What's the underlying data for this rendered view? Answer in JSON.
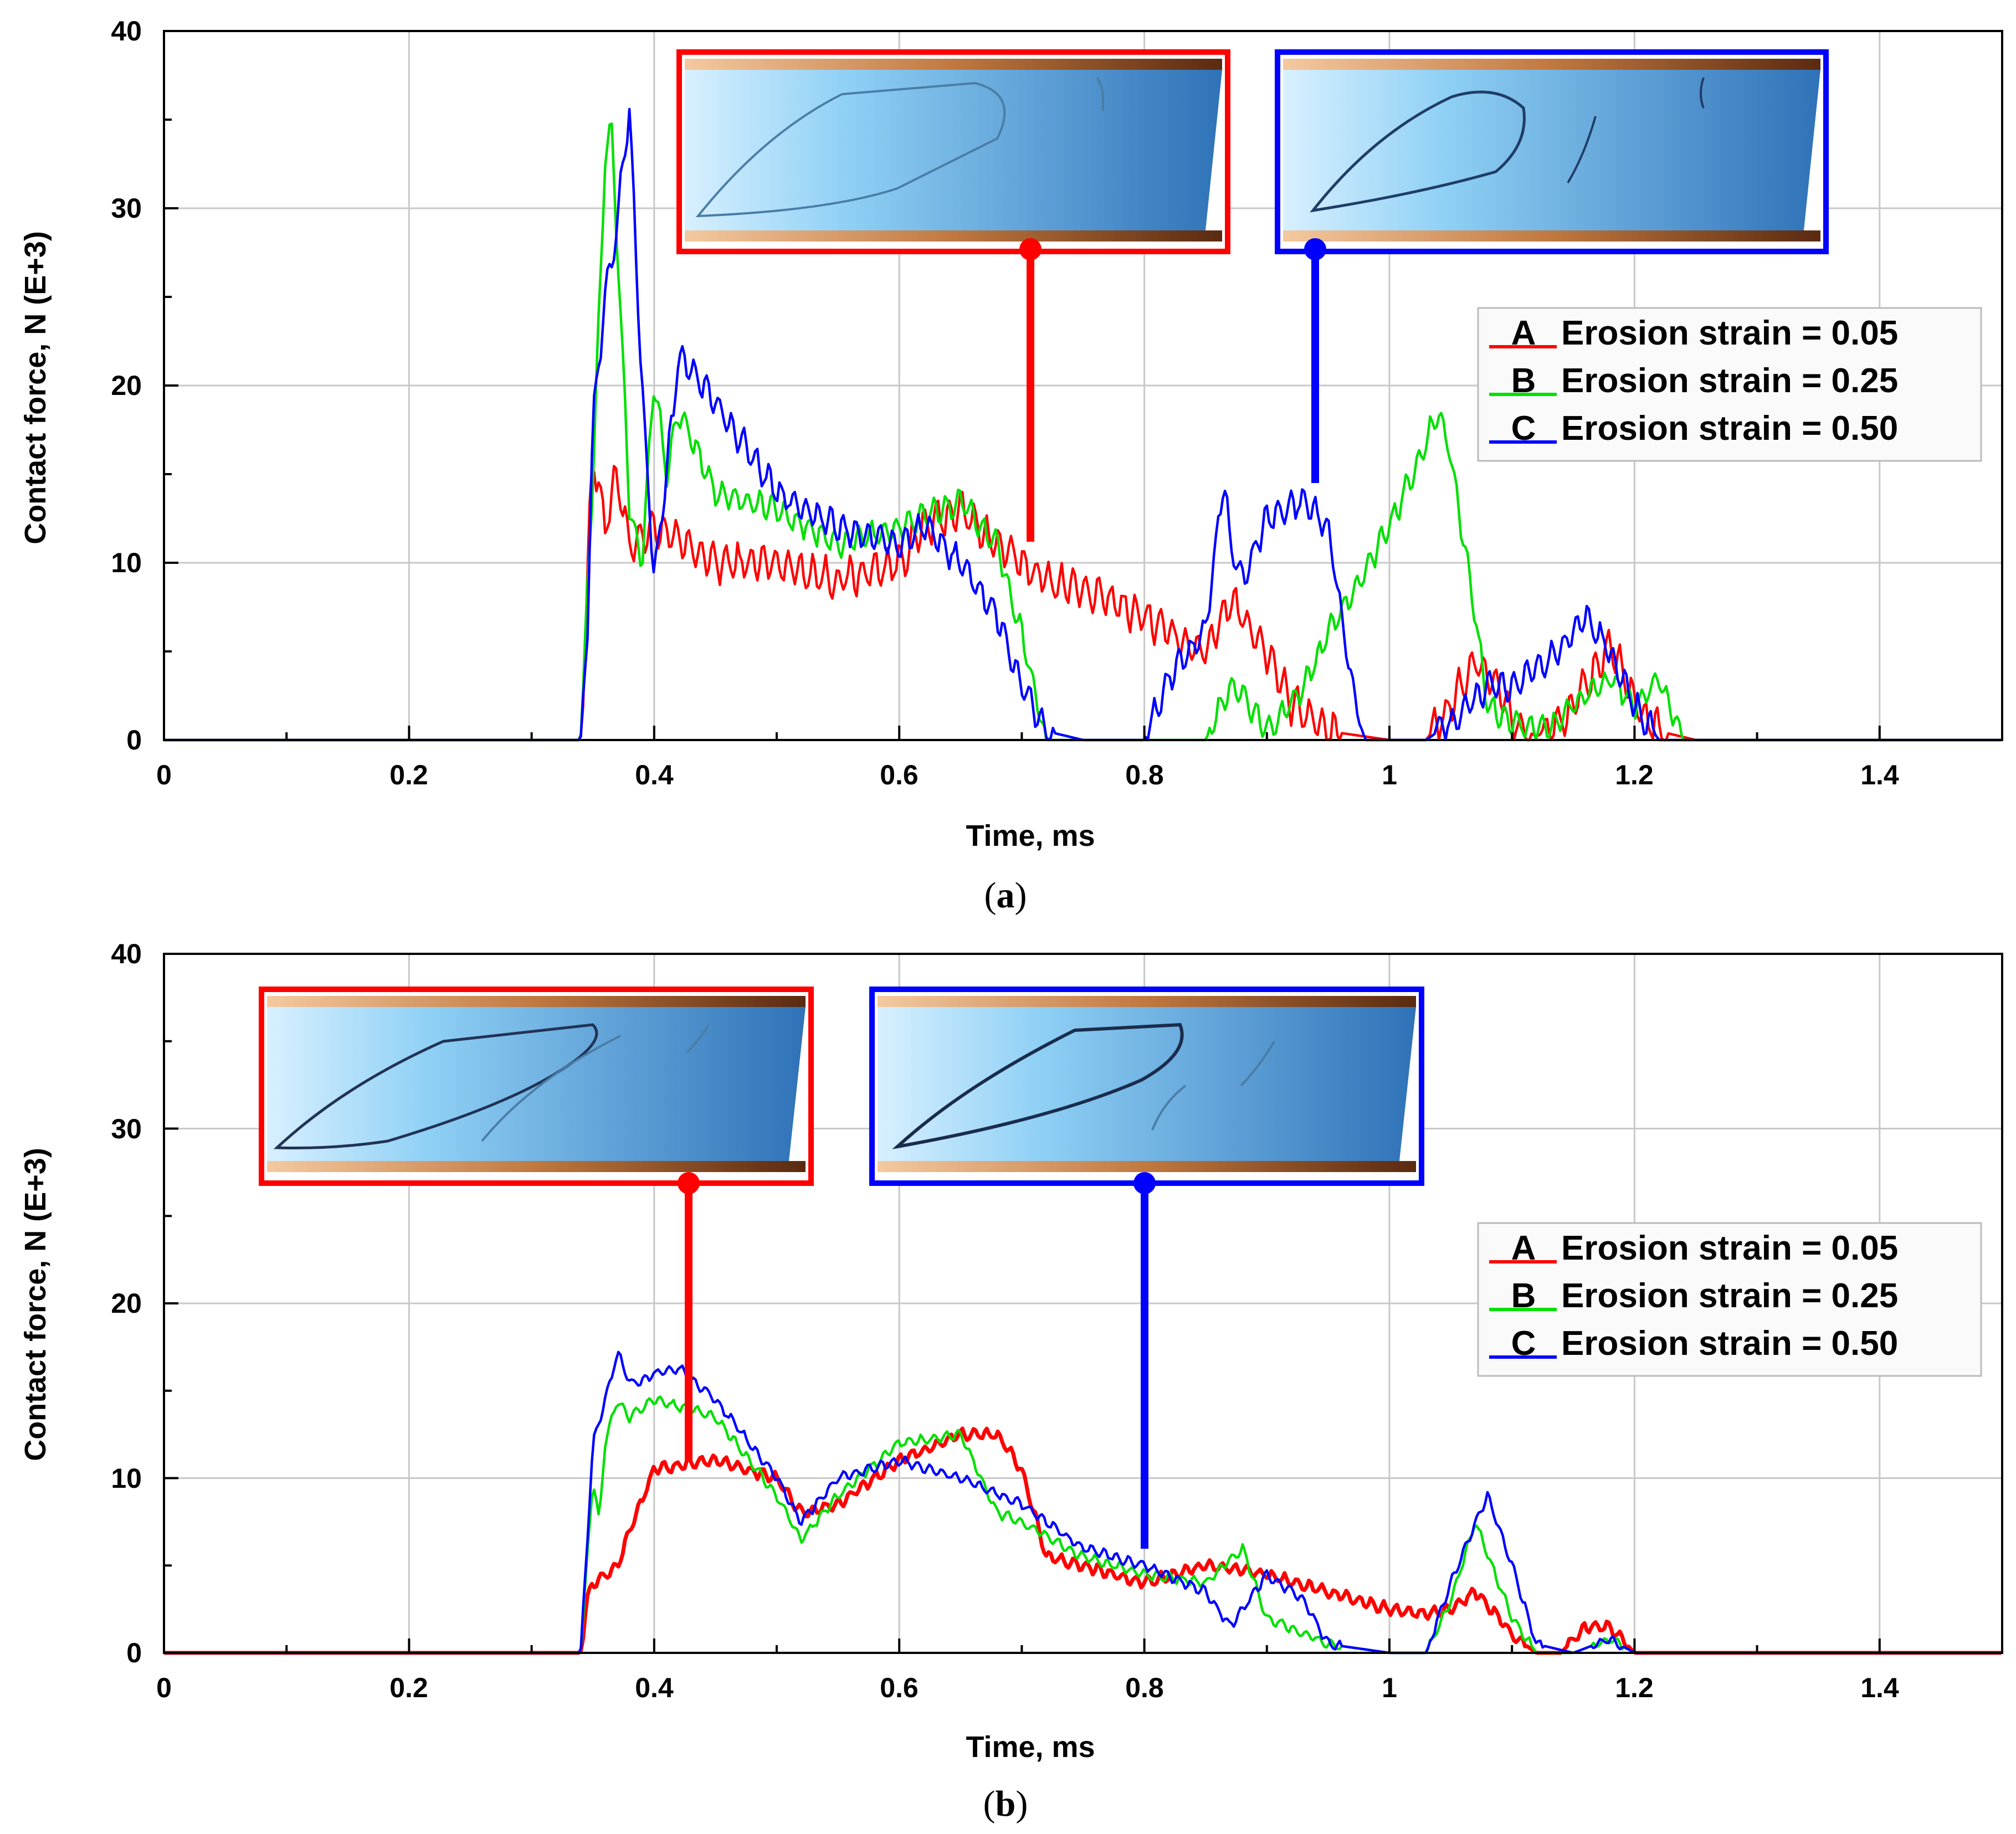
{
  "colors": {
    "A": "#ff0000",
    "B": "#00e000",
    "C": "#0000ff"
  },
  "legend": [
    {
      "letter": "A",
      "label": "Erosion strain = 0.05"
    },
    {
      "letter": "B",
      "label": "Erosion strain = 0.25"
    },
    {
      "letter": "C",
      "label": "Erosion strain = 0.50"
    }
  ],
  "chart_data": [
    {
      "type": "line",
      "caption": "a",
      "xlabel": "Time, ms",
      "ylabel": "Contact force, N (E+3)",
      "xlim": [
        0,
        1.5
      ],
      "ylim": [
        0,
        40
      ],
      "xticks": [
        "0",
        "0.2",
        "0.4",
        "0.6",
        "0.8",
        "1",
        "1.2",
        "1.4"
      ],
      "yticks": [
        "0",
        "10",
        "20",
        "30",
        "40"
      ],
      "series": [
        {
          "name": "A",
          "x": [
            0,
            0.34,
            0.345,
            0.35,
            0.36,
            0.37,
            0.38,
            0.4,
            0.45,
            0.5,
            0.55,
            0.6,
            0.62,
            0.65,
            0.68,
            0.7,
            0.72,
            0.75,
            0.8,
            0.82,
            0.85,
            0.87,
            0.9,
            0.92,
            0.95,
            0.98,
            1.0,
            1.03,
            1.05,
            1.07,
            1.09,
            1.1,
            1.12,
            1.14,
            1.16,
            1.18,
            1.2,
            1.22,
            1.25,
            1.5
          ],
          "y": [
            0,
            0,
            8,
            16.5,
            12,
            15,
            11,
            12,
            10,
            10,
            9,
            10,
            12,
            13,
            11,
            10,
            9,
            8.5,
            7,
            6,
            5,
            8,
            5,
            2,
            0.5,
            0.2,
            0,
            0,
            2,
            4.5,
            3,
            1,
            0.2,
            1,
            3,
            5.5,
            2,
            0.5,
            0,
            0
          ],
          "amp": 1.2
        },
        {
          "name": "B",
          "x": [
            0,
            0.34,
            0.35,
            0.36,
            0.365,
            0.37,
            0.38,
            0.39,
            0.4,
            0.41,
            0.42,
            0.45,
            0.5,
            0.55,
            0.6,
            0.65,
            0.68,
            0.7,
            0.72,
            0.8,
            0.85,
            0.87,
            0.88,
            0.9,
            0.93,
            0.95,
            1.0,
            1.04,
            1.05,
            1.07,
            1.08,
            1.1,
            1.13,
            1.15,
            1.18,
            1.2,
            1.22,
            1.24,
            1.5
          ],
          "y": [
            0,
            0,
            15,
            33,
            35,
            28,
            13,
            10,
            20.5,
            15,
            18.5,
            14,
            13,
            11,
            12,
            13.5,
            11,
            6,
            0,
            0,
            0,
            3,
            2.5,
            0.5,
            3,
            6,
            12,
            18.5,
            16,
            7,
            2,
            1,
            0.5,
            2,
            3.5,
            2,
            3.5,
            0,
            0
          ],
          "amp": 0.8
        },
        {
          "name": "C",
          "x": [
            0,
            0.34,
            0.345,
            0.35,
            0.36,
            0.37,
            0.375,
            0.38,
            0.39,
            0.4,
            0.405,
            0.42,
            0.43,
            0.45,
            0.5,
            0.55,
            0.6,
            0.62,
            0.65,
            0.68,
            0.7,
            0.72,
            0.75,
            0.8,
            0.82,
            0.85,
            0.86,
            0.865,
            0.87,
            0.88,
            0.9,
            0.93,
            0.95,
            0.97,
            0.98,
            1.0,
            1.03,
            1.05,
            1.08,
            1.1,
            1.13,
            1.15,
            1.16,
            1.18,
            1.2,
            1.22,
            1.5
          ],
          "y": [
            0,
            0,
            5,
            18,
            25,
            29,
            33,
            35.5,
            20,
            9,
            12,
            21.5,
            21,
            19,
            14,
            12,
            11,
            12,
            10,
            7,
            3,
            0.5,
            0,
            0,
            3.5,
            6,
            12,
            15,
            11,
            9,
            12.5,
            13.5,
            12,
            3,
            0,
            0,
            0,
            1,
            3,
            3,
            4.5,
            6,
            7,
            5,
            2,
            0,
            0
          ],
          "amp": 0.9
        }
      ]
    },
    {
      "type": "line",
      "caption": "b",
      "xlabel": "Time, ms",
      "ylabel": "Contact force, N (E+3)",
      "xlim": [
        0,
        1.5
      ],
      "ylim": [
        0,
        40
      ],
      "xticks": [
        "0",
        "0.2",
        "0.4",
        "0.6",
        "0.8",
        "1",
        "1.2",
        "1.4"
      ],
      "yticks": [
        "0",
        "10",
        "20",
        "30",
        "40"
      ],
      "series": [
        {
          "name": "A",
          "x": [
            0,
            0.34,
            0.345,
            0.35,
            0.37,
            0.38,
            0.4,
            0.45,
            0.5,
            0.52,
            0.55,
            0.6,
            0.65,
            0.68,
            0.7,
            0.72,
            0.75,
            0.8,
            0.85,
            0.9,
            0.95,
            1.0,
            1.03,
            1.05,
            1.07,
            1.09,
            1.1,
            1.12,
            1.14,
            1.16,
            1.18,
            1.2,
            1.5
          ],
          "y": [
            0,
            0,
            3,
            4,
            5,
            7,
            10.5,
            11,
            10,
            8,
            8.5,
            11,
            12.5,
            12.5,
            10.5,
            5.5,
            5,
            4,
            5,
            4.5,
            3.5,
            2.5,
            2.2,
            2.5,
            3.5,
            2,
            1,
            0,
            0,
            1.5,
            1.5,
            0,
            0
          ],
          "amp": 0.35
        },
        {
          "name": "B",
          "x": [
            0,
            0.34,
            0.35,
            0.355,
            0.36,
            0.37,
            0.38,
            0.4,
            0.45,
            0.5,
            0.52,
            0.55,
            0.6,
            0.65,
            0.68,
            0.7,
            0.75,
            0.8,
            0.85,
            0.88,
            0.9,
            0.95,
            1.0,
            1.03,
            1.05,
            1.07,
            1.1,
            1.12,
            1.15,
            1.18,
            1.2,
            1.5
          ],
          "y": [
            0,
            0,
            10,
            7.5,
            12,
            14.5,
            13.5,
            14.5,
            13.5,
            9,
            6.5,
            9,
            12,
            12.5,
            8,
            7.5,
            5.5,
            4.5,
            4,
            6,
            2,
            0.5,
            0,
            0,
            3,
            7.5,
            2,
            0,
            0,
            0.8,
            0,
            0
          ],
          "amp": 0.3
        },
        {
          "name": "C",
          "x": [
            0,
            0.34,
            0.35,
            0.36,
            0.37,
            0.38,
            0.39,
            0.4,
            0.42,
            0.45,
            0.5,
            0.52,
            0.55,
            0.6,
            0.65,
            0.7,
            0.75,
            0.8,
            0.85,
            0.87,
            0.88,
            0.9,
            0.93,
            0.95,
            1.0,
            1.03,
            1.05,
            1.08,
            1.1,
            1.12,
            1.15,
            1.18,
            1.2,
            1.5
          ],
          "y": [
            0,
            0,
            12,
            14.5,
            17.2,
            15.5,
            15.5,
            16,
            16.3,
            14.5,
            10,
            7.5,
            10,
            11,
            10,
            8.5,
            6,
            5,
            3.5,
            1.5,
            2.5,
            4.5,
            3,
            0.5,
            0,
            0,
            4,
            9,
            5,
            0.5,
            0,
            0.8,
            0,
            0
          ],
          "amp": 0.3
        }
      ]
    }
  ]
}
